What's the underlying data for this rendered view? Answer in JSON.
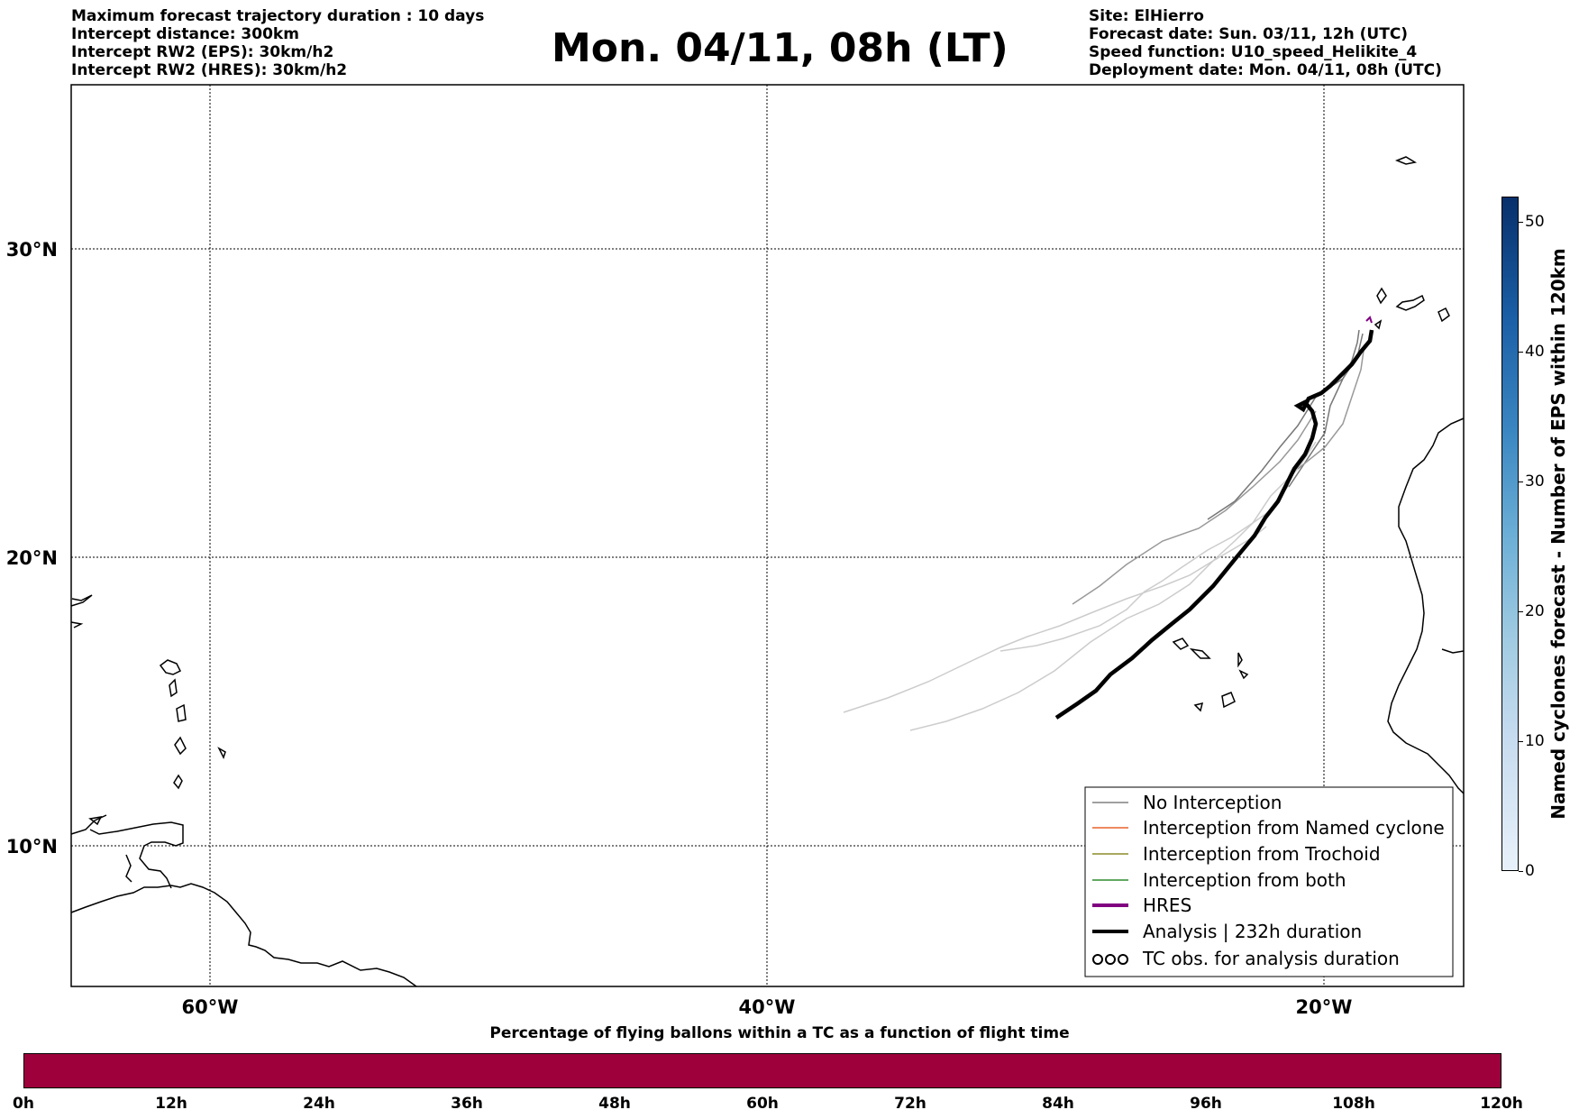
{
  "header_left": [
    "Maximum forecast trajectory duration : 10 days",
    "Intercept distance: 300km",
    "Intercept RW2 (EPS):  30km/h2",
    "Intercept RW2 (HRES): 30km/h2"
  ],
  "title": "Mon. 04/11, 08h (LT)",
  "header_right": [
    "Site: ElHierro",
    "Forecast date: Sun. 03/11, 12h (UTC)",
    "Speed function: U10_speed_Helikite_4",
    "Deployment date: Mon. 04/11, 08h (UTC)"
  ],
  "map": {
    "lat_labels": [
      "30°N",
      "20°N",
      "10°N"
    ],
    "lon_labels": [
      "60°W",
      "40°W",
      "20°W"
    ],
    "lat_values": [
      30,
      20,
      10
    ],
    "lon_values": [
      -60,
      -40,
      -20
    ],
    "extent": {
      "lon_min": -65,
      "lon_max": -15,
      "lat_min": 5.4,
      "lat_max": 35.3
    }
  },
  "legend": {
    "items": [
      {
        "label": "No Interception",
        "color": "#808080",
        "style": "thin"
      },
      {
        "label": "Interception from Named cyclone",
        "color": "#e8602c",
        "style": "thin"
      },
      {
        "label": "Interception from Trochoid",
        "color": "#8b8b2a",
        "style": "thin"
      },
      {
        "label": "Interception from both",
        "color": "#2e8b2e",
        "style": "thin"
      },
      {
        "label": "HRES",
        "color": "#800080",
        "style": "thick"
      },
      {
        "label": "Analysis | 232h duration",
        "color": "#000000",
        "style": "thick"
      },
      {
        "label": "TC obs. for analysis duration",
        "color": "#000000",
        "style": "symbol"
      }
    ]
  },
  "colorbar": {
    "label": "Named cyclones forecast - Number of EPS within 120km",
    "ticks": [
      "0",
      "10",
      "20",
      "30",
      "40",
      "50"
    ],
    "min": 0,
    "max": 52
  },
  "bottom": {
    "title": "Percentage of flying ballons within a TC as a function of flight time",
    "bar_color": "#9e003b",
    "ticks": [
      "0h",
      "12h",
      "24h",
      "36h",
      "48h",
      "60h",
      "72h",
      "84h",
      "96h",
      "108h",
      "120h"
    ]
  }
}
